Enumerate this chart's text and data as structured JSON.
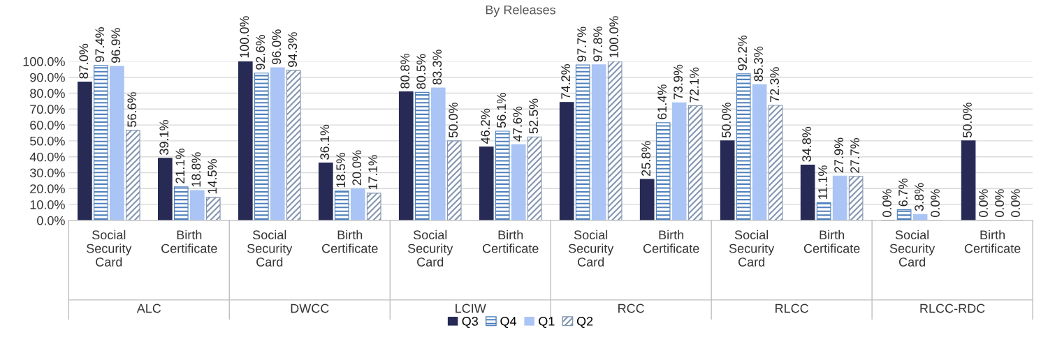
{
  "chart_data": {
    "type": "bar",
    "title": "By Releases",
    "categories": [
      "Social\nSecurity\nCard",
      "Birth\nCertificate",
      "Social\nSecurity\nCard",
      "Birth\nCertificate",
      "Social\nSecurity\nCard",
      "Birth\nCertificate",
      "Social\nSecurity\nCard",
      "Birth\nCertificate",
      "Social\nSecurity\nCard",
      "Birth\nCertificate",
      "Social\nSecurity\nCard",
      "Birth\nCertificate"
    ],
    "annotations": [
      "ALC",
      "DWCC",
      "LCIW",
      "RCC",
      "RLCC",
      "RLCC-RDC"
    ],
    "series": [
      {
        "name": "Q3",
        "color": "#262a55",
        "values": [
          87.0,
          39.1,
          100.0,
          36.1,
          80.8,
          46.2,
          74.2,
          25.8,
          50.0,
          34.8,
          0.0,
          50.0
        ],
        "value_labels": [
          "87.0%",
          "39.1%",
          "100.0%",
          "36.1%",
          "80.8%",
          "46.2%",
          "74.2%",
          "25.8%",
          "50.0%",
          "34.8%",
          "0.0%",
          "50.0%"
        ]
      },
      {
        "name": "Q4",
        "color": "#4f81bd",
        "values": [
          97.4,
          21.1,
          92.6,
          18.5,
          80.5,
          56.1,
          97.7,
          61.4,
          92.2,
          11.1,
          6.7,
          0.0
        ],
        "value_labels": [
          "97.4%",
          "21.1%",
          "92.6%",
          "18.5%",
          "80.5%",
          "56.1%",
          "97.7%",
          "61.4%",
          "92.2%",
          "11.1%",
          "6.7%",
          "0.0%"
        ]
      },
      {
        "name": "Q1",
        "color": "#a9c4f5",
        "values": [
          96.9,
          18.8,
          96.0,
          20.0,
          83.3,
          47.6,
          97.8,
          73.9,
          85.3,
          27.9,
          3.8,
          0.0
        ],
        "value_labels": [
          "96.9%",
          "18.8%",
          "96.0%",
          "20.0%",
          "83.3%",
          "47.6%",
          "97.8%",
          "73.9%",
          "85.3%",
          "27.9%",
          "3.8%",
          "0.0%"
        ]
      },
      {
        "name": "Q2",
        "color": "#8496b0",
        "values": [
          56.6,
          14.5,
          94.3,
          17.1,
          50.0,
          52.5,
          100.0,
          72.1,
          72.3,
          27.7,
          0.0,
          0.0
        ],
        "value_labels": [
          "56.6%",
          "14.5%",
          "94.3%",
          "17.1%",
          "50.0%",
          "52.5%",
          "100.0%",
          "72.1%",
          "72.3%",
          "27.7%",
          "0.0%",
          "0.0%"
        ]
      }
    ],
    "ylim": [
      0,
      100
    ],
    "yticks": [
      {
        "value": 0,
        "label": "0.0%"
      },
      {
        "value": 10,
        "label": "10.0%"
      },
      {
        "value": 20,
        "label": "20.0%"
      },
      {
        "value": 30,
        "label": "30.0%"
      },
      {
        "value": 40,
        "label": "40.0%"
      },
      {
        "value": 50,
        "label": "50.0%"
      },
      {
        "value": 60,
        "label": "60.0%"
      },
      {
        "value": 70,
        "label": "70.0%"
      },
      {
        "value": 80,
        "label": "80.0%"
      },
      {
        "value": 90,
        "label": "90.0%"
      },
      {
        "value": 100,
        "label": "100.0%"
      }
    ],
    "grid": "y",
    "legend": "bottom"
  }
}
